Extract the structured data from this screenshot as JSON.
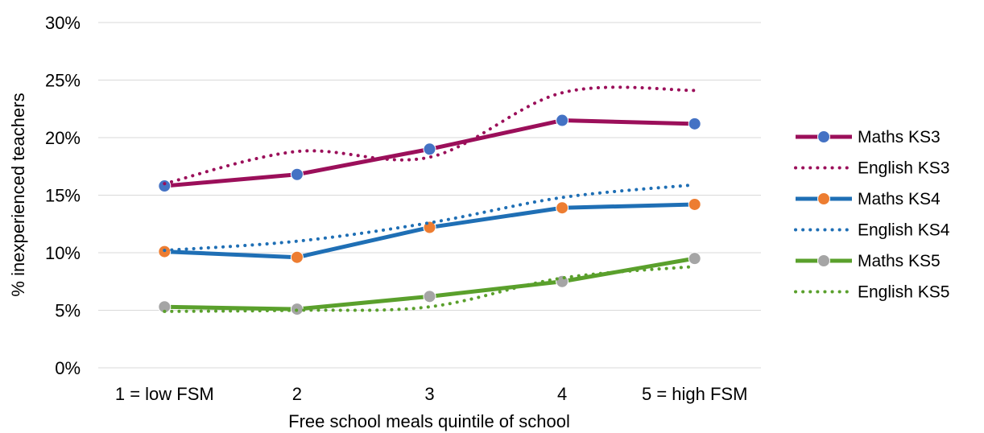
{
  "chart_data": {
    "type": "line",
    "title": "",
    "xlabel": "Free school meals quintile of school",
    "ylabel": "% inexperienced teachers",
    "categories": [
      "1 = low FSM",
      "2",
      "3",
      "4",
      "5 = high FSM"
    ],
    "ylim": [
      0,
      30
    ],
    "yticks": [
      "0%",
      "5%",
      "10%",
      "15%",
      "20%",
      "25%",
      "30%"
    ],
    "grid": true,
    "legend_placement": "right",
    "series": [
      {
        "name": "Maths KS3",
        "values": [
          15.8,
          16.8,
          19.0,
          21.5,
          21.2
        ],
        "color": "#9b0f5a",
        "style": "solid",
        "marker_color": "#4472c4"
      },
      {
        "name": "English KS3",
        "values": [
          16.0,
          18.8,
          18.3,
          23.9,
          24.1
        ],
        "color": "#9b0f5a",
        "style": "dotted",
        "marker_color": ""
      },
      {
        "name": "Maths KS4",
        "values": [
          10.1,
          9.6,
          12.2,
          13.9,
          14.2
        ],
        "color": "#1f6fb5",
        "style": "solid",
        "marker_color": "#ed7d31"
      },
      {
        "name": "English KS4",
        "values": [
          10.2,
          11.0,
          12.6,
          14.8,
          15.9
        ],
        "color": "#1f6fb5",
        "style": "dotted",
        "marker_color": ""
      },
      {
        "name": "Maths KS5",
        "values": [
          5.3,
          5.1,
          6.2,
          7.5,
          9.5
        ],
        "color": "#5aa02c",
        "style": "solid",
        "marker_color": "#a5a5a5"
      },
      {
        "name": "English KS5",
        "values": [
          4.9,
          5.0,
          5.3,
          7.8,
          8.8
        ],
        "color": "#5aa02c",
        "style": "dotted",
        "marker_color": ""
      }
    ]
  }
}
